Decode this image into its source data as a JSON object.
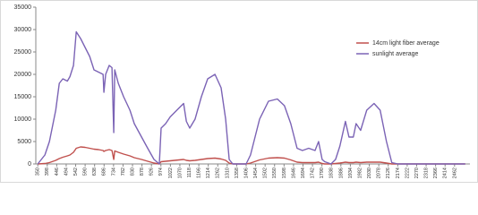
{
  "chart_data": {
    "type": "line",
    "x": [
      350,
      386,
      409,
      441,
      459,
      477,
      500,
      513,
      531,
      545,
      567,
      590,
      613,
      635,
      658,
      681,
      685,
      694,
      712,
      726,
      735,
      740,
      758,
      785,
      817,
      839,
      876,
      907,
      939,
      966,
      975,
      998,
      1021,
      1066,
      1089,
      1103,
      1120,
      1147,
      1179,
      1211,
      1248,
      1279,
      1302,
      1320,
      1338,
      1406,
      1428,
      1474,
      1519,
      1564,
      1600,
      1632,
      1664,
      1691,
      1723,
      1755,
      1773,
      1791,
      1804,
      1836,
      1859,
      1881,
      1909,
      1927,
      1949,
      1963,
      1986,
      2017,
      2054,
      2085,
      2117,
      2144,
      2175,
      2516
    ],
    "series": [
      {
        "name": "14cm light fiber average",
        "color": "#c0504d",
        "values": [
          0,
          100,
          300,
          800,
          1200,
          1500,
          1800,
          2000,
          2600,
          3500,
          3800,
          3700,
          3500,
          3300,
          3200,
          3000,
          2800,
          3000,
          3200,
          3000,
          1000,
          2900,
          2600,
          2200,
          1800,
          1400,
          1000,
          600,
          200,
          0,
          500,
          600,
          700,
          900,
          1000,
          800,
          700,
          800,
          1000,
          1200,
          1300,
          1100,
          800,
          200,
          0,
          0,
          200,
          900,
          1300,
          1400,
          1300,
          900,
          400,
          300,
          300,
          300,
          400,
          100,
          0,
          0,
          100,
          200,
          400,
          300,
          300,
          400,
          300,
          400,
          400,
          400,
          200,
          0,
          0,
          0
        ]
      },
      {
        "name": "sunlight average",
        "color": "#7b63b5",
        "values": [
          0,
          2000,
          5000,
          12000,
          18000,
          19000,
          18500,
          19500,
          22000,
          29500,
          28000,
          26000,
          24000,
          21000,
          20500,
          20000,
          16000,
          20000,
          22000,
          21500,
          7000,
          21000,
          18000,
          15000,
          12000,
          9000,
          6000,
          3500,
          1000,
          0,
          8000,
          9000,
          10500,
          12500,
          13500,
          9500,
          8000,
          10000,
          15000,
          19000,
          20000,
          17000,
          10000,
          1000,
          0,
          0,
          2000,
          10000,
          14000,
          14500,
          13000,
          9000,
          3500,
          3000,
          3500,
          3000,
          5000,
          1000,
          500,
          0,
          1000,
          4000,
          9500,
          6000,
          6000,
          9000,
          7500,
          12000,
          13500,
          12000,
          5000,
          300,
          0,
          0
        ]
      }
    ],
    "xlim": [
      340,
      2540
    ],
    "xticks": [
      350,
      398,
      446,
      494,
      542,
      590,
      638,
      686,
      734,
      782,
      830,
      878,
      926,
      974,
      1022,
      1070,
      1118,
      1166,
      1214,
      1262,
      1310,
      1358,
      1406,
      1454,
      1502,
      1550,
      1598,
      1646,
      1694,
      1742,
      1790,
      1838,
      1886,
      1934,
      1982,
      2030,
      2078,
      2126,
      2174,
      2222,
      2270,
      2318,
      2366,
      2414,
      2462
    ],
    "ylim": [
      0,
      35000
    ],
    "yticks": [
      0,
      5000,
      10000,
      15000,
      20000,
      25000,
      30000,
      35000
    ],
    "grid": false,
    "legend": "right"
  }
}
